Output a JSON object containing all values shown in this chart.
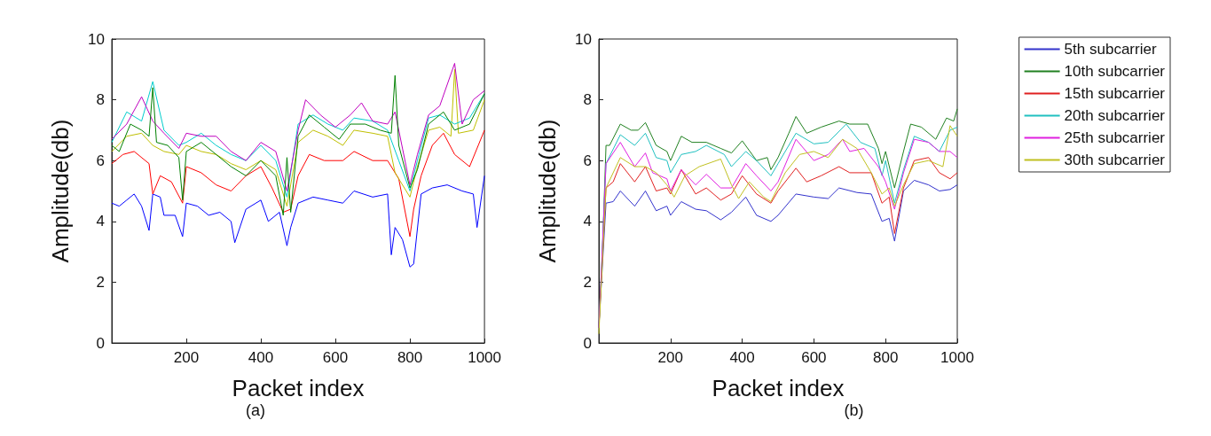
{
  "chart_data": [
    {
      "type": "line",
      "xlabel": "Packet index",
      "ylabel": "Amplitude(db)",
      "annotations": [
        "(a)"
      ],
      "xlim": [
        0,
        1000
      ],
      "xticks": [
        200,
        400,
        600,
        800,
        1000
      ],
      "ylim": [
        0,
        10
      ],
      "yticks": [
        0,
        2,
        4,
        6,
        8,
        10
      ],
      "grid": false,
      "legend": false,
      "marker": "none",
      "line_style": "solid",
      "series": [
        {
          "color": "#0000ff",
          "x": [
            0,
            20,
            40,
            60,
            80,
            100,
            110,
            130,
            140,
            170,
            190,
            200,
            230,
            260,
            290,
            320,
            330,
            360,
            400,
            420,
            450,
            470,
            480,
            500,
            540,
            580,
            620,
            650,
            700,
            740,
            750,
            760,
            780,
            800,
            810,
            830,
            860,
            900,
            940,
            970,
            980,
            1000
          ],
          "values": [
            4.6,
            4.5,
            4.7,
            4.9,
            4.5,
            3.7,
            4.9,
            4.8,
            4.2,
            4.2,
            3.5,
            4.6,
            4.5,
            4.2,
            4.3,
            4.0,
            3.3,
            4.4,
            4.7,
            4.0,
            4.3,
            3.2,
            3.8,
            4.6,
            4.8,
            4.7,
            4.6,
            5.0,
            4.8,
            4.9,
            2.9,
            3.8,
            3.4,
            2.5,
            2.6,
            4.9,
            5.1,
            5.2,
            5.0,
            4.9,
            3.8,
            5.5
          ]
        },
        {
          "color": "#ff0000",
          "x": [
            0,
            30,
            60,
            100,
            110,
            130,
            160,
            190,
            200,
            240,
            280,
            320,
            360,
            400,
            430,
            460,
            480,
            500,
            530,
            570,
            620,
            650,
            700,
            740,
            770,
            800,
            810,
            830,
            860,
            890,
            920,
            960,
            1000
          ],
          "values": [
            5.9,
            6.2,
            6.3,
            5.9,
            4.9,
            5.5,
            5.3,
            4.6,
            5.8,
            5.6,
            5.2,
            5.0,
            5.5,
            5.8,
            5.1,
            4.3,
            4.4,
            5.5,
            6.2,
            6.0,
            6.0,
            6.3,
            6.0,
            6.0,
            5.4,
            3.5,
            4.4,
            5.5,
            6.5,
            6.9,
            6.2,
            5.8,
            7.0
          ]
        },
        {
          "color": "#bfbf00",
          "x": [
            0,
            40,
            80,
            110,
            140,
            180,
            200,
            240,
            280,
            320,
            360,
            400,
            440,
            470,
            500,
            540,
            580,
            620,
            650,
            700,
            740,
            760,
            800,
            820,
            850,
            880,
            910,
            920,
            930,
            970,
            1000
          ],
          "values": [
            6.3,
            6.8,
            6.9,
            6.5,
            6.3,
            6.2,
            6.5,
            6.3,
            6.2,
            5.9,
            5.7,
            6.0,
            5.7,
            4.5,
            6.6,
            7.0,
            6.8,
            6.5,
            7.0,
            6.9,
            6.8,
            5.6,
            4.8,
            5.8,
            7.0,
            7.1,
            6.8,
            9.0,
            6.9,
            7.0,
            8.0
          ]
        },
        {
          "color": "#00cccc",
          "x": [
            0,
            40,
            80,
            110,
            140,
            180,
            200,
            240,
            280,
            320,
            360,
            400,
            440,
            470,
            500,
            540,
            580,
            620,
            650,
            700,
            740,
            770,
            800,
            820,
            850,
            880,
            920,
            960,
            1000
          ],
          "values": [
            6.6,
            7.6,
            7.3,
            8.6,
            7.0,
            6.5,
            6.6,
            6.9,
            6.5,
            6.2,
            6.0,
            6.5,
            6.0,
            4.8,
            7.2,
            7.5,
            7.2,
            7.0,
            7.4,
            7.3,
            7.0,
            6.0,
            5.0,
            6.0,
            7.4,
            7.5,
            7.2,
            7.4,
            8.2
          ]
        },
        {
          "color": "#bf00bf",
          "x": [
            0,
            40,
            80,
            110,
            140,
            180,
            200,
            240,
            280,
            320,
            360,
            400,
            440,
            470,
            500,
            520,
            560,
            600,
            640,
            670,
            700,
            740,
            760,
            800,
            820,
            850,
            880,
            920,
            940,
            970,
            1000
          ],
          "values": [
            6.7,
            7.2,
            8.1,
            7.3,
            6.9,
            6.4,
            6.9,
            6.8,
            6.8,
            6.3,
            6.0,
            6.6,
            6.3,
            5.0,
            7.0,
            8.0,
            7.5,
            7.1,
            7.5,
            7.9,
            7.3,
            7.2,
            7.6,
            5.2,
            6.2,
            7.5,
            7.8,
            9.2,
            7.2,
            8.0,
            8.3
          ]
        },
        {
          "color": "#008000",
          "x": [
            0,
            20,
            50,
            80,
            100,
            110,
            120,
            150,
            180,
            190,
            200,
            240,
            280,
            320,
            360,
            400,
            440,
            460,
            470,
            480,
            500,
            530,
            570,
            610,
            640,
            680,
            720,
            750,
            760,
            770,
            800,
            820,
            850,
            890,
            920,
            960,
            1000
          ],
          "values": [
            6.5,
            6.3,
            7.2,
            7.0,
            6.8,
            8.4,
            6.6,
            6.5,
            6.1,
            4.7,
            6.3,
            6.6,
            6.2,
            5.8,
            5.5,
            6.0,
            5.5,
            4.2,
            6.1,
            4.3,
            6.8,
            7.5,
            7.1,
            6.7,
            7.2,
            7.2,
            7.0,
            6.9,
            8.8,
            6.5,
            5.1,
            5.7,
            7.2,
            7.6,
            7.0,
            7.2,
            8.2
          ]
        }
      ]
    },
    {
      "type": "line",
      "xlabel": "Packet index",
      "ylabel": "Amplitude(db)",
      "annotations": [
        "(b)"
      ],
      "xlim": [
        0,
        1000
      ],
      "xticks": [
        200,
        400,
        600,
        800,
        1000
      ],
      "ylim": [
        0,
        10
      ],
      "yticks": [
        0,
        2,
        4,
        6,
        8,
        10
      ],
      "grid": false,
      "legend": "top right",
      "marker": "none",
      "line_style": "solid",
      "series": [
        {
          "name": "5th subcarrier",
          "color": "#3333cc",
          "x": [
            0,
            20,
            40,
            60,
            100,
            130,
            160,
            190,
            200,
            230,
            270,
            300,
            340,
            370,
            410,
            440,
            480,
            500,
            550,
            600,
            640,
            670,
            720,
            760,
            790,
            810,
            825,
            850,
            880,
            920,
            950,
            980,
            1000
          ],
          "values": [
            0.5,
            4.6,
            4.65,
            5.0,
            4.5,
            5.0,
            4.35,
            4.5,
            4.2,
            4.65,
            4.4,
            4.35,
            4.05,
            4.3,
            4.8,
            4.2,
            4.0,
            4.2,
            4.9,
            4.8,
            4.75,
            5.1,
            4.95,
            4.9,
            4.0,
            4.1,
            3.35,
            5.0,
            5.35,
            5.2,
            5.0,
            5.05,
            5.2
          ]
        },
        {
          "name": "10th subcarrier",
          "color": "#208020",
          "x": [
            0,
            10,
            20,
            30,
            60,
            90,
            110,
            130,
            160,
            190,
            200,
            230,
            260,
            300,
            340,
            370,
            400,
            440,
            470,
            480,
            500,
            530,
            550,
            580,
            620,
            670,
            700,
            750,
            780,
            790,
            800,
            825,
            850,
            870,
            900,
            940,
            970,
            990,
            1000
          ],
          "values": [
            0.5,
            3.0,
            6.5,
            6.5,
            7.2,
            7.0,
            7.0,
            7.25,
            6.5,
            6.3,
            6.0,
            6.8,
            6.6,
            6.6,
            6.4,
            6.25,
            6.65,
            6.0,
            6.1,
            5.7,
            6.1,
            6.9,
            7.45,
            6.9,
            7.1,
            7.3,
            7.2,
            7.2,
            6.4,
            5.9,
            6.3,
            5.1,
            6.3,
            7.2,
            7.1,
            6.7,
            7.4,
            7.3,
            7.7
          ]
        },
        {
          "name": "15th subcarrier",
          "color": "#e02020",
          "x": [
            0,
            20,
            40,
            60,
            100,
            130,
            160,
            190,
            200,
            230,
            270,
            300,
            340,
            370,
            400,
            440,
            480,
            500,
            550,
            580,
            620,
            670,
            700,
            760,
            790,
            810,
            825,
            850,
            880,
            920,
            950,
            980,
            1000
          ],
          "values": [
            0.5,
            5.1,
            5.3,
            5.9,
            5.3,
            5.8,
            5.0,
            5.1,
            4.9,
            5.7,
            4.9,
            5.1,
            4.7,
            4.9,
            5.5,
            4.9,
            4.6,
            5.0,
            5.75,
            5.3,
            5.5,
            5.8,
            5.6,
            5.6,
            4.6,
            4.8,
            3.6,
            5.1,
            6.0,
            6.1,
            5.6,
            5.4,
            5.6
          ]
        },
        {
          "name": "20th subcarrier",
          "color": "#20c0c0",
          "x": [
            0,
            20,
            60,
            100,
            130,
            160,
            190,
            200,
            230,
            270,
            300,
            350,
            370,
            410,
            440,
            480,
            500,
            550,
            600,
            640,
            690,
            730,
            770,
            790,
            800,
            825,
            850,
            880,
            920,
            950,
            980,
            1000
          ],
          "values": [
            0.5,
            5.9,
            6.85,
            6.5,
            6.9,
            6.1,
            6.0,
            5.6,
            6.2,
            6.3,
            6.5,
            6.2,
            5.8,
            6.3,
            6.0,
            5.5,
            5.9,
            6.9,
            6.55,
            6.6,
            7.2,
            6.6,
            6.4,
            5.5,
            6.0,
            4.6,
            5.7,
            6.8,
            6.6,
            6.3,
            7.0,
            7.1
          ]
        },
        {
          "name": "25th subcarrier",
          "color": "#e020e0",
          "x": [
            0,
            20,
            60,
            100,
            130,
            150,
            190,
            200,
            230,
            270,
            300,
            340,
            370,
            410,
            440,
            480,
            500,
            550,
            600,
            640,
            680,
            700,
            740,
            780,
            800,
            825,
            850,
            880,
            920,
            950,
            980,
            1000
          ],
          "values": [
            0.5,
            5.9,
            6.6,
            5.8,
            6.25,
            5.6,
            5.4,
            5.0,
            5.7,
            5.2,
            5.55,
            5.1,
            5.1,
            5.9,
            5.5,
            5.0,
            5.3,
            6.7,
            6.0,
            6.2,
            6.7,
            6.3,
            6.4,
            5.8,
            5.3,
            4.4,
            5.6,
            6.7,
            6.6,
            6.3,
            6.3,
            6.1
          ]
        },
        {
          "name": "30th subcarrier",
          "color": "#c0c020",
          "x": [
            0,
            20,
            60,
            100,
            130,
            160,
            190,
            210,
            240,
            280,
            340,
            370,
            390,
            420,
            460,
            480,
            520,
            560,
            600,
            640,
            680,
            720,
            760,
            790,
            810,
            825,
            850,
            880,
            920,
            960,
            980,
            1000
          ],
          "values": [
            0.3,
            5.1,
            6.1,
            5.8,
            5.8,
            5.6,
            5.2,
            4.8,
            5.5,
            5.8,
            6.05,
            5.2,
            4.75,
            5.3,
            4.8,
            4.65,
            5.6,
            6.2,
            6.3,
            6.1,
            6.7,
            6.4,
            5.6,
            4.9,
            5.1,
            4.5,
            5.2,
            5.9,
            6.0,
            5.8,
            7.15,
            6.8
          ]
        }
      ]
    }
  ]
}
